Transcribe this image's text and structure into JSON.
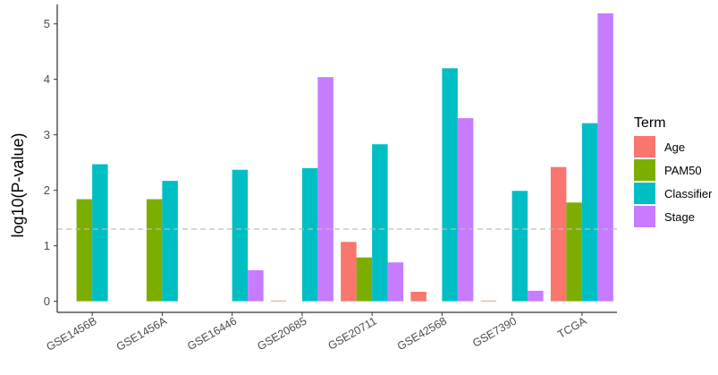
{
  "chart_data": {
    "type": "bar",
    "ylabel": "log10(P-value)",
    "ylim": [
      -0.2,
      5.35
    ],
    "yticks": [
      0,
      1,
      2,
      3,
      4,
      5
    ],
    "categories": [
      "GSE1456B",
      "GSE1456A",
      "GSE16446",
      "GSE20685",
      "GSE20711",
      "GSE42568",
      "GSE7390",
      "TCGA"
    ],
    "reference_line": {
      "y": 1.3,
      "style": "dashed",
      "color": "#bdbdbd"
    },
    "legend": {
      "title": "Term",
      "position": "right"
    },
    "series": [
      {
        "name": "Age",
        "color": "#F8766D",
        "values": [
          null,
          null,
          null,
          0.01,
          1.07,
          0.17,
          0.01,
          2.42
        ]
      },
      {
        "name": "PAM50",
        "color": "#7CAE00",
        "values": [
          1.84,
          1.84,
          null,
          null,
          0.79,
          null,
          null,
          1.78
        ]
      },
      {
        "name": "Classifier",
        "color": "#00BFC4",
        "values": [
          2.47,
          2.17,
          2.37,
          2.4,
          2.83,
          4.2,
          1.99,
          3.21
        ]
      },
      {
        "name": "Stage",
        "color": "#C77CFF",
        "values": [
          null,
          null,
          0.56,
          4.04,
          0.7,
          3.3,
          0.19,
          5.19
        ]
      }
    ]
  }
}
